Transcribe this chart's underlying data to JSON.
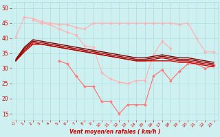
{
  "xlabel": "Vent moyen/en rafales ( km/h )",
  "x": [
    0,
    1,
    2,
    3,
    4,
    5,
    6,
    7,
    8,
    9,
    10,
    11,
    12,
    13,
    14,
    15,
    16,
    17,
    18,
    19,
    20,
    21,
    22,
    23
  ],
  "series": [
    {
      "name": "light_top",
      "color": "#ffb3b3",
      "linewidth": 0.9,
      "marker": "D",
      "markersize": 2.0,
      "y": [
        40.5,
        47.0,
        46.5,
        45.5,
        45.0,
        44.5,
        44.5,
        43.5,
        43.0,
        45.0,
        45.0,
        45.0,
        45.0,
        45.0,
        45.0,
        45.0,
        45.0,
        45.0,
        45.0,
        44.5,
        45.0,
        40.0,
        35.5,
        35.5
      ]
    },
    {
      "name": "light_mid",
      "color": "#ffb3b3",
      "linewidth": 0.9,
      "marker": "D",
      "markersize": 2.0,
      "y": [
        null,
        null,
        46.0,
        45.0,
        44.5,
        43.0,
        42.0,
        41.0,
        37.5,
        37.0,
        28.5,
        26.5,
        25.5,
        25.0,
        26.0,
        26.0,
        34.5,
        39.0,
        36.5,
        null,
        null,
        null,
        null,
        null
      ]
    },
    {
      "name": "medium_line",
      "color": "#ff7777",
      "linewidth": 0.9,
      "marker": "D",
      "markersize": 2.0,
      "y": [
        null,
        null,
        null,
        null,
        null,
        32.5,
        31.5,
        27.5,
        24.0,
        24.0,
        19.0,
        19.0,
        15.0,
        18.0,
        18.0,
        18.0,
        27.5,
        29.5,
        26.0,
        29.0,
        31.5,
        31.5,
        30.0,
        31.0
      ]
    },
    {
      "name": "dark1",
      "color": "#cc0000",
      "linewidth": 1.0,
      "marker": null,
      "markersize": 0,
      "y": [
        32.5,
        35.5,
        38.0,
        38.0,
        37.5,
        37.0,
        36.5,
        36.0,
        35.5,
        35.0,
        34.5,
        34.0,
        33.5,
        33.0,
        32.5,
        32.5,
        32.5,
        32.5,
        32.5,
        32.0,
        32.0,
        31.5,
        31.0,
        30.5
      ]
    },
    {
      "name": "dark2",
      "color": "#bb0000",
      "linewidth": 1.0,
      "marker": null,
      "markersize": 0,
      "y": [
        32.5,
        36.0,
        38.5,
        38.0,
        37.5,
        37.0,
        36.5,
        36.0,
        35.5,
        35.0,
        34.5,
        34.0,
        33.5,
        33.0,
        32.5,
        32.5,
        33.0,
        33.5,
        33.0,
        32.5,
        32.5,
        32.0,
        31.5,
        31.0
      ]
    },
    {
      "name": "dark3",
      "color": "#990000",
      "linewidth": 1.0,
      "marker": null,
      "markersize": 0,
      "y": [
        32.5,
        36.5,
        39.0,
        38.5,
        38.0,
        37.5,
        37.0,
        36.5,
        36.0,
        35.5,
        35.0,
        34.5,
        34.0,
        33.5,
        33.0,
        33.0,
        33.5,
        34.0,
        33.5,
        33.0,
        33.0,
        32.5,
        32.0,
        31.5
      ]
    },
    {
      "name": "dark4",
      "color": "#770000",
      "linewidth": 1.0,
      "marker": null,
      "markersize": 0,
      "y": [
        33.0,
        37.0,
        39.5,
        39.0,
        38.5,
        38.0,
        37.5,
        37.0,
        36.5,
        36.0,
        35.5,
        35.0,
        34.5,
        34.0,
        33.5,
        33.5,
        34.0,
        34.5,
        34.0,
        33.5,
        33.5,
        33.0,
        32.5,
        32.0
      ]
    }
  ],
  "ylim": [
    13,
    52
  ],
  "xlim": [
    -0.5,
    23.5
  ],
  "yticks": [
    15,
    20,
    25,
    30,
    35,
    40,
    45,
    50
  ],
  "xticks": [
    0,
    1,
    2,
    3,
    4,
    5,
    6,
    7,
    8,
    9,
    10,
    11,
    12,
    13,
    14,
    15,
    16,
    17,
    18,
    19,
    20,
    21,
    22,
    23
  ],
  "bg_color": "#cff0f0",
  "grid_color": "#aadddd",
  "tick_color": "#cc0000",
  "label_color": "#cc0000"
}
